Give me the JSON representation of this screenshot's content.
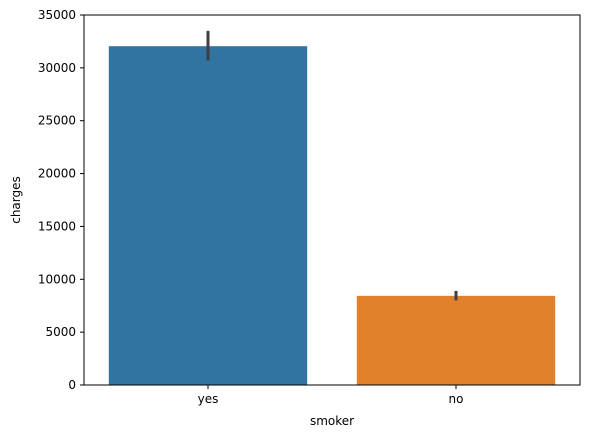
{
  "chart_data": {
    "type": "bar",
    "title": "",
    "xlabel": "smoker",
    "ylabel": "charges",
    "categories": [
      "yes",
      "no"
    ],
    "values": [
      32050,
      8434
    ],
    "error_bars": [
      [
        30700,
        33500
      ],
      [
        8000,
        8900
      ]
    ],
    "ylim": [
      0,
      35000
    ],
    "yticks": [
      0,
      5000,
      10000,
      15000,
      20000,
      25000,
      30000,
      35000
    ],
    "colors": [
      "#3274a1",
      "#e1812c"
    ],
    "error_color": "#3f3f3f",
    "grid": false,
    "legend": "none"
  }
}
